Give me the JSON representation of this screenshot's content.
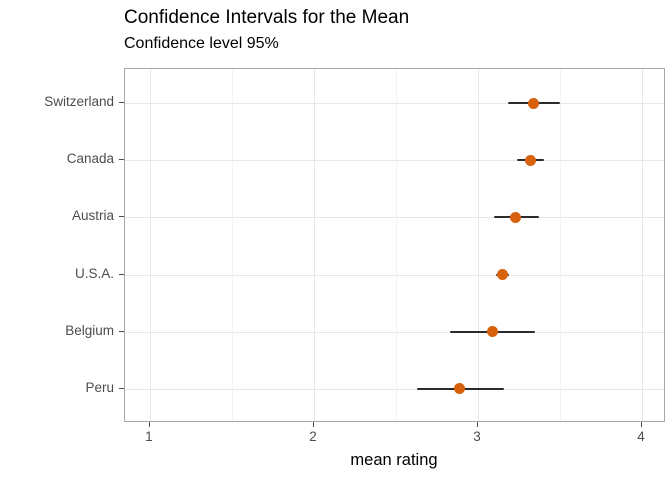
{
  "figure": {
    "title": "Confidence Intervals for the Mean",
    "subtitle": "Confidence level 95%"
  },
  "chart_data": {
    "type": "scatter",
    "title": "Confidence Intervals for the Mean",
    "subtitle": "Confidence level 95%",
    "confidence_level": "95%",
    "categories": [
      "Switzerland",
      "Canada",
      "Austria",
      "U.S.A.",
      "Belgium",
      "Peru"
    ],
    "series": [
      {
        "name": "mean",
        "values": [
          3.34,
          3.32,
          3.23,
          3.15,
          3.09,
          2.89
        ]
      },
      {
        "name": "ci_lower",
        "values": [
          3.18,
          3.24,
          3.1,
          3.11,
          2.83,
          2.63
        ]
      },
      {
        "name": "ci_upper",
        "values": [
          3.5,
          3.4,
          3.37,
          3.19,
          3.35,
          3.16
        ]
      }
    ],
    "xlabel": "mean rating",
    "ylabel": "",
    "xlim": [
      0.848,
      4.146
    ],
    "x_major_ticks": [
      1,
      2,
      3,
      4
    ],
    "x_minor_ticks": [
      1.5,
      2.5,
      3.5
    ],
    "grid": true,
    "legend": false,
    "colors": {
      "point": "#d7610d",
      "errorbar": "#2b2b2b",
      "grid_major": "#e7e7e7",
      "grid_minor": "#f4f4f4",
      "panel_border": "#a8a8a8",
      "tick_label": "#4d4d4d",
      "text": "#000000"
    }
  }
}
